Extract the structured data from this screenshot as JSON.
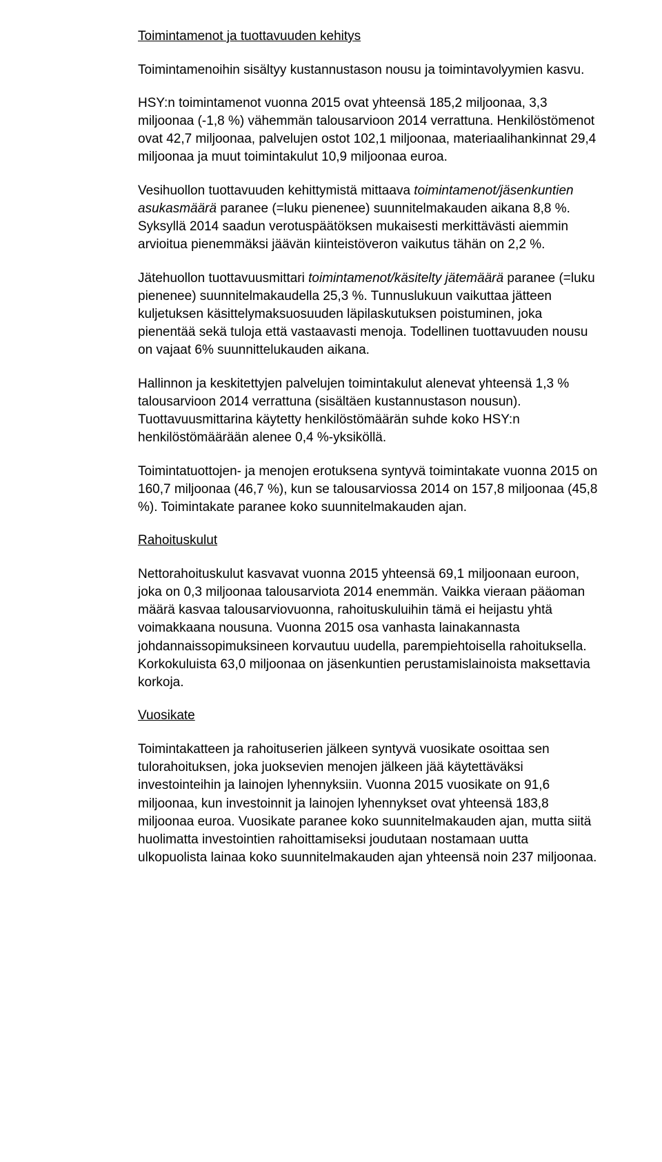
{
  "doc": {
    "heading1": "Toimintamenot ja tuottavuuden kehitys",
    "p1": "Toimintamenoihin sisältyy kustannustason nousu ja toimintavolyymien kasvu.",
    "p2": "HSY:n toimintamenot vuonna 2015 ovat yhteensä 185,2 miljoonaa, 3,3 miljoonaa (-1,8 %) vähemmän talousarvioon 2014 verrattuna. Henkilöstömenot ovat 42,7 miljoonaa, palvelujen ostot 102,1 miljoonaa, materiaalihankinnat 29,4 miljoonaa ja muut toimintakulut 10,9 miljoonaa euroa.",
    "p3_a": "Vesihuollon tuottavuuden kehittymistä mittaava ",
    "p3_i1": "toimintamenot/jäsenkuntien asukasmäärä",
    "p3_b": " paranee (=luku pienenee) suunnitelmakauden aikana 8,8 %. Syksyllä 2014 saadun verotuspäätöksen mukaisesti merkittävästi aiemmin arvioitua pienemmäksi jäävän kiinteistöveron vaikutus tähän on 2,2 %.",
    "p4_a": "Jätehuollon tuottavuusmittari ",
    "p4_i1": "toimintamenot/käsitelty jätemäärä",
    "p4_b": " paranee (=luku pienenee) suunnitelmakaudella 25,3 %. Tunnuslukuun vaikuttaa jätteen kuljetuksen käsittelymaksuosuuden läpilaskutuksen poistuminen, joka pienentää sekä tuloja että vastaavasti menoja. Todellinen tuottavuuden nousu on vajaat 6% suunnittelukauden aikana.",
    "p5": "Hallinnon ja keskitettyjen palvelujen toimintakulut alenevat yhteensä 1,3 % talousarvioon 2014 verrattuna (sisältäen kustannustason nousun). Tuottavuusmittarina käytetty henkilöstömäärän suhde koko HSY:n henkilöstömäärään alenee 0,4 %-yksiköllä.",
    "p6": "Toimintatuottojen- ja menojen erotuksena syntyvä toimintakate vuonna 2015 on 160,7 miljoonaa (46,7 %), kun se talousarviossa 2014 on 157,8 miljoonaa (45,8 %). Toimintakate paranee koko suunnitelmakauden ajan.",
    "heading2": "Rahoituskulut",
    "p7": "Nettorahoituskulut kasvavat vuonna 2015 yhteensä 69,1 miljoonaan euroon, joka on 0,3 miljoonaa talousarviota 2014 enemmän. Vaikka vieraan pääoman määrä kasvaa talousarviovuonna, rahoituskuluihin tämä ei heijastu yhtä voimakkaana nousuna. Vuonna 2015 osa vanhasta lainakannasta johdannaissopimuksineen korvautuu uudella, parempiehtoisella rahoituksella. Korkokuluista 63,0 miljoonaa on jäsenkuntien perustamislainoista maksettavia korkoja.",
    "heading3": "Vuosikate",
    "p8": "Toimintakatteen ja rahoituserien jälkeen syntyvä vuosikate osoittaa sen tulorahoituksen, joka juoksevien menojen jälkeen jää käytettäväksi investointeihin ja lainojen lyhennyksiin. Vuonna 2015 vuosikate on 91,6 miljoonaa, kun investoinnit ja lainojen lyhennykset ovat yhteensä 183,8 miljoonaa euroa. Vuosikate paranee koko suunnitelmakauden ajan, mutta siitä huolimatta investointien rahoittamiseksi joudutaan nostamaan uutta ulkopuolista lainaa koko suunnitelmakauden ajan yhteensä noin 237 miljoonaa."
  }
}
